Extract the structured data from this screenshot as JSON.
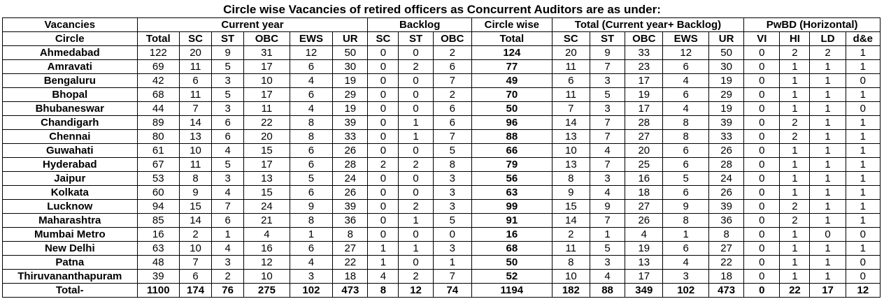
{
  "title": "Circle wise Vacancies of retired officers as Concurrent Auditors are as under:",
  "header_row1": [
    "Vacancies",
    "Current year",
    "Backlog",
    "Circle wise",
    "Total (Current year+ Backlog)",
    "PwBD (Horizontal)"
  ],
  "header_row2": [
    "Circle",
    "Total",
    "SC",
    "ST",
    "OBC",
    "EWS",
    "UR",
    "SC",
    "ST",
    "OBC",
    "Total",
    "SC",
    "ST",
    "OBC",
    "EWS",
    "UR",
    "VI",
    "HI",
    "LD",
    "d&e"
  ],
  "rows": [
    [
      "Ahmedabad",
      "122",
      "20",
      "9",
      "31",
      "12",
      "50",
      "0",
      "0",
      "2",
      "124",
      "20",
      "9",
      "33",
      "12",
      "50",
      "0",
      "2",
      "2",
      "1"
    ],
    [
      "Amravati",
      "69",
      "11",
      "5",
      "17",
      "6",
      "30",
      "0",
      "2",
      "6",
      "77",
      "11",
      "7",
      "23",
      "6",
      "30",
      "0",
      "1",
      "1",
      "1"
    ],
    [
      "Bengaluru",
      "42",
      "6",
      "3",
      "10",
      "4",
      "19",
      "0",
      "0",
      "7",
      "49",
      "6",
      "3",
      "17",
      "4",
      "19",
      "0",
      "1",
      "1",
      "0"
    ],
    [
      "Bhopal",
      "68",
      "11",
      "5",
      "17",
      "6",
      "29",
      "0",
      "0",
      "2",
      "70",
      "11",
      "5",
      "19",
      "6",
      "29",
      "0",
      "1",
      "1",
      "1"
    ],
    [
      "Bhubaneswar",
      "44",
      "7",
      "3",
      "11",
      "4",
      "19",
      "0",
      "0",
      "6",
      "50",
      "7",
      "3",
      "17",
      "4",
      "19",
      "0",
      "1",
      "1",
      "0"
    ],
    [
      "Chandigarh",
      "89",
      "14",
      "6",
      "22",
      "8",
      "39",
      "0",
      "1",
      "6",
      "96",
      "14",
      "7",
      "28",
      "8",
      "39",
      "0",
      "2",
      "1",
      "1"
    ],
    [
      "Chennai",
      "80",
      "13",
      "6",
      "20",
      "8",
      "33",
      "0",
      "1",
      "7",
      "88",
      "13",
      "7",
      "27",
      "8",
      "33",
      "0",
      "2",
      "1",
      "1"
    ],
    [
      "Guwahati",
      "61",
      "10",
      "4",
      "15",
      "6",
      "26",
      "0",
      "0",
      "5",
      "66",
      "10",
      "4",
      "20",
      "6",
      "26",
      "0",
      "1",
      "1",
      "1"
    ],
    [
      "Hyderabad",
      "67",
      "11",
      "5",
      "17",
      "6",
      "28",
      "2",
      "2",
      "8",
      "79",
      "13",
      "7",
      "25",
      "6",
      "28",
      "0",
      "1",
      "1",
      "1"
    ],
    [
      "Jaipur",
      "53",
      "8",
      "3",
      "13",
      "5",
      "24",
      "0",
      "0",
      "3",
      "56",
      "8",
      "3",
      "16",
      "5",
      "24",
      "0",
      "1",
      "1",
      "1"
    ],
    [
      "Kolkata",
      "60",
      "9",
      "4",
      "15",
      "6",
      "26",
      "0",
      "0",
      "3",
      "63",
      "9",
      "4",
      "18",
      "6",
      "26",
      "0",
      "1",
      "1",
      "1"
    ],
    [
      "Lucknow",
      "94",
      "15",
      "7",
      "24",
      "9",
      "39",
      "0",
      "2",
      "3",
      "99",
      "15",
      "9",
      "27",
      "9",
      "39",
      "0",
      "2",
      "1",
      "1"
    ],
    [
      "Maharashtra",
      "85",
      "14",
      "6",
      "21",
      "8",
      "36",
      "0",
      "1",
      "5",
      "91",
      "14",
      "7",
      "26",
      "8",
      "36",
      "0",
      "2",
      "1",
      "1"
    ],
    [
      "Mumbai Metro",
      "16",
      "2",
      "1",
      "4",
      "1",
      "8",
      "0",
      "0",
      "0",
      "16",
      "2",
      "1",
      "4",
      "1",
      "8",
      "0",
      "1",
      "0",
      "0"
    ],
    [
      "New Delhi",
      "63",
      "10",
      "4",
      "16",
      "6",
      "27",
      "1",
      "1",
      "3",
      "68",
      "11",
      "5",
      "19",
      "6",
      "27",
      "0",
      "1",
      "1",
      "1"
    ],
    [
      "Patna",
      "48",
      "7",
      "3",
      "12",
      "4",
      "22",
      "1",
      "0",
      "1",
      "50",
      "8",
      "3",
      "13",
      "4",
      "22",
      "0",
      "1",
      "1",
      "0"
    ],
    [
      "Thiruvananthapuram",
      "39",
      "6",
      "2",
      "10",
      "3",
      "18",
      "4",
      "2",
      "7",
      "52",
      "10",
      "4",
      "17",
      "3",
      "18",
      "0",
      "1",
      "1",
      "0"
    ]
  ],
  "total_row": [
    "Total-",
    "1100",
    "174",
    "76",
    "275",
    "102",
    "473",
    "8",
    "12",
    "74",
    "1194",
    "182",
    "88",
    "349",
    "102",
    "473",
    "0",
    "22",
    "17",
    "12"
  ]
}
